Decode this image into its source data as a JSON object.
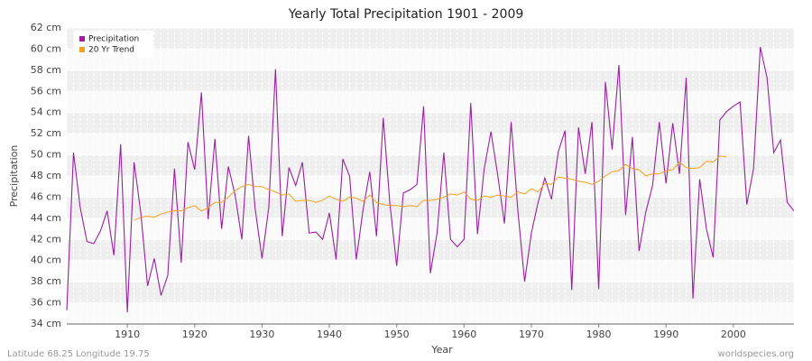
{
  "chart_data": {
    "type": "line",
    "title": "Yearly Total Precipitation 1901 - 2009",
    "x_label": "Year",
    "y_label": "Precipitation",
    "footer_left": "Latitude 68.25 Longitude 19.75",
    "footer_right": "worldspecies.org",
    "legend_position": "top-left",
    "grid": true,
    "xlim": [
      1901,
      2009
    ],
    "xticks": [
      1910,
      1920,
      1930,
      1940,
      1950,
      1960,
      1970,
      1980,
      1990,
      2000
    ],
    "ylim": [
      34,
      62
    ],
    "yticks": [
      {
        "value": 34,
        "label": "34 cm"
      },
      {
        "value": 36,
        "label": "36 cm"
      },
      {
        "value": 38,
        "label": "38 cm"
      },
      {
        "value": 40,
        "label": "40 cm"
      },
      {
        "value": 42,
        "label": "42 cm"
      },
      {
        "value": 44,
        "label": "44 cm"
      },
      {
        "value": 46,
        "label": "46 cm"
      },
      {
        "value": 48,
        "label": "48 cm"
      },
      {
        "value": 50,
        "label": "50 cm"
      },
      {
        "value": 52,
        "label": "52 cm"
      },
      {
        "value": 54,
        "label": "54 cm"
      },
      {
        "value": 56,
        "label": "56 cm"
      },
      {
        "value": 58,
        "label": "58 cm"
      },
      {
        "value": 60,
        "label": "60 cm"
      },
      {
        "value": 62,
        "label": "62 cm"
      }
    ],
    "x": [
      1901,
      1902,
      1903,
      1904,
      1905,
      1906,
      1907,
      1908,
      1909,
      1910,
      1911,
      1912,
      1913,
      1914,
      1915,
      1916,
      1917,
      1918,
      1919,
      1920,
      1921,
      1922,
      1923,
      1924,
      1925,
      1926,
      1927,
      1928,
      1929,
      1930,
      1931,
      1932,
      1933,
      1934,
      1935,
      1936,
      1937,
      1938,
      1939,
      1940,
      1941,
      1942,
      1943,
      1944,
      1945,
      1946,
      1947,
      1948,
      1949,
      1950,
      1951,
      1952,
      1953,
      1954,
      1955,
      1956,
      1957,
      1958,
      1959,
      1960,
      1961,
      1962,
      1963,
      1964,
      1965,
      1966,
      1967,
      1968,
      1969,
      1970,
      1971,
      1972,
      1973,
      1974,
      1975,
      1976,
      1977,
      1978,
      1979,
      1980,
      1981,
      1982,
      1983,
      1984,
      1985,
      1986,
      1987,
      1988,
      1989,
      1990,
      1991,
      1992,
      1993,
      1994,
      1995,
      1996,
      1997,
      1998,
      1999,
      2000,
      2001,
      2002,
      2003,
      2004,
      2005,
      2006,
      2007,
      2008,
      2009
    ],
    "series": [
      {
        "name": "Precipitation",
        "color": "#9b1fa3",
        "values": [
          35.3,
          50.2,
          45,
          41.8,
          41.6,
          42.8,
          44.7,
          40.5,
          51,
          35.1,
          49.3,
          44.5,
          37.6,
          40.2,
          36.7,
          38.6,
          48.7,
          39.8,
          51.2,
          48.6,
          55.9,
          43.9,
          51.5,
          43,
          48.9,
          46.2,
          42,
          51.8,
          44.8,
          40.2,
          45,
          58.1,
          42.3,
          48.8,
          47.1,
          49.3,
          42.6,
          42.7,
          42,
          44.5,
          40.1,
          49.6,
          48,
          40.1,
          44.8,
          48.4,
          42.3,
          53.5,
          45.3,
          39.5,
          46.4,
          46.7,
          47.2,
          54.6,
          38.8,
          42.6,
          50.2,
          42,
          41.3,
          42,
          54.9,
          42.5,
          48.7,
          52.2,
          48.1,
          43.5,
          53.1,
          44.7,
          38,
          42.6,
          45.5,
          47.8,
          45.8,
          50.3,
          52.3,
          37.2,
          52.6,
          48.2,
          53.1,
          37.3,
          56.9,
          50.5,
          58.5,
          44.3,
          51.7,
          40.9,
          44.6,
          47.1,
          53.1,
          47.3,
          53,
          48.2,
          57.3,
          36.4,
          47.7,
          43,
          40.3,
          53.3,
          54.1,
          54.6,
          55,
          45.3,
          48.7,
          60.2,
          57.3,
          50.2,
          51.4,
          45.5,
          44.7
        ]
      },
      {
        "name": "20 Yr Trend",
        "color": "#f5a020",
        "values": [
          null,
          null,
          null,
          null,
          null,
          null,
          null,
          null,
          null,
          null,
          43.8,
          44.1,
          44.2,
          44.1,
          44.4,
          44.6,
          44.7,
          44.7,
          45.0,
          45.2,
          44.7,
          45.0,
          45.5,
          45.5,
          46.0,
          46.6,
          47.0,
          47.2,
          47.0,
          47.0,
          46.7,
          46.5,
          46.2,
          46.3,
          45.6,
          45.7,
          45.7,
          45.5,
          45.7,
          46.1,
          45.8,
          45.6,
          46.0,
          45.9,
          45.6,
          46.2,
          45.5,
          45.3,
          45.2,
          45.2,
          45.1,
          45.2,
          45.1,
          45.7,
          45.7,
          45.8,
          46.0,
          46.3,
          46.2,
          46.5,
          45.8,
          45.7,
          46.1,
          46.0,
          46.2,
          46.1,
          46.0,
          46.5,
          46.3,
          46.8,
          46.5,
          47.3,
          47.2,
          47.9,
          47.8,
          47.7,
          47.5,
          47.4,
          47.2,
          47.5,
          48.0,
          48.4,
          48.5,
          49.1,
          48.7,
          48.6,
          48.0,
          48.2,
          48.2,
          48.5,
          48.6,
          49.3,
          48.8,
          48.7,
          48.8,
          49.4,
          49.3,
          49.9,
          49.8,
          null,
          null,
          null,
          null,
          null,
          null,
          null,
          null,
          null,
          null
        ]
      }
    ]
  }
}
